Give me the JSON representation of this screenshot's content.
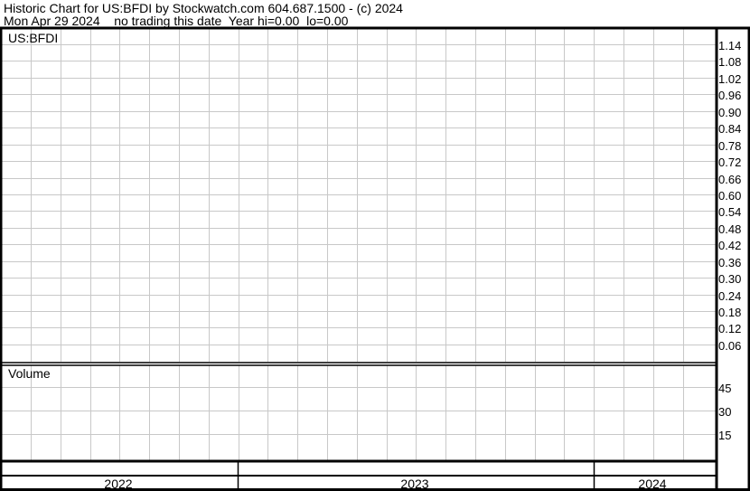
{
  "header": {
    "title": "Historic Chart for US:BFDI by Stockwatch.com 604.687.1500 - (c) 2024",
    "status": "Mon Apr 29 2024    no trading this date  Year hi=0.00  lo=0.00"
  },
  "chart_data": [
    {
      "type": "line",
      "title": "US:BFDI",
      "y_ticks": [
        "1.14",
        "1.08",
        "1.02",
        "0.96",
        "0.90",
        "0.84",
        "0.78",
        "0.72",
        "0.66",
        "0.60",
        "0.54",
        "0.48",
        "0.42",
        "0.36",
        "0.30",
        "0.24",
        "0.18",
        "0.12",
        "0.06"
      ],
      "ylim": [
        0.06,
        1.14
      ],
      "series": [],
      "grid": true
    },
    {
      "type": "bar",
      "title": "Volume",
      "y_ticks": [
        "45",
        "30",
        "15"
      ],
      "series": [],
      "grid": true
    }
  ],
  "x_axis": {
    "years": [
      "2022",
      "2023",
      "2024"
    ]
  },
  "colors": {
    "grid": "#c8c8c8",
    "border": "#000000",
    "tick_text": "#000000"
  }
}
